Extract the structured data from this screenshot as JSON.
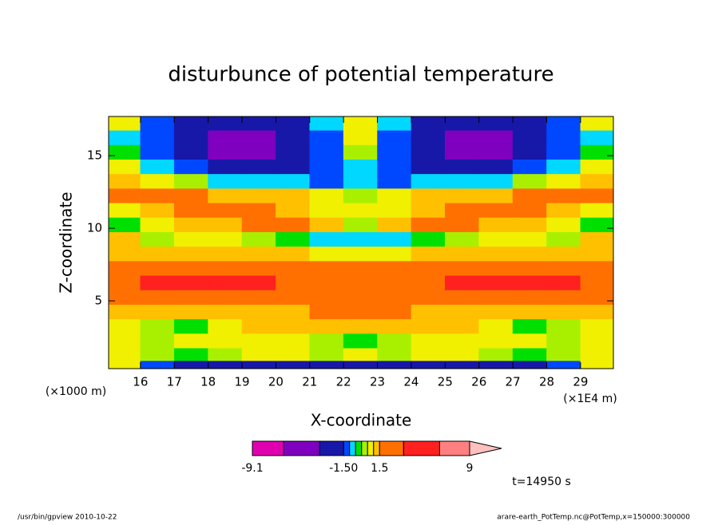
{
  "chart_data": {
    "type": "contour",
    "title": "disturbunce of potential temperature",
    "x_label": "X-coordinate",
    "y_label": "Z-coordinate",
    "y_unit": "(×1000 m)",
    "x_unit": "(×1E4 m)",
    "time_label": "t=14950 s",
    "footer_left": "/usr/bin/gpview  2010-10-22",
    "footer_right": "arare-earth_PotTemp.nc@PotTemp,x=150000:300000",
    "xlim": [
      15.06,
      29.97
    ],
    "ylim": [
      0.33,
      17.7
    ],
    "xticks": [
      16,
      17,
      18,
      19,
      20,
      21,
      22,
      23,
      24,
      25,
      26,
      27,
      28,
      29
    ],
    "yticks": [
      5,
      10,
      15
    ],
    "x": [
      15.5,
      16.5,
      17.5,
      18.5,
      19.5,
      20.5,
      21.5,
      22.5,
      23.5,
      24.5,
      25.5,
      26.5,
      27.5,
      28.5,
      29.5
    ],
    "y": [
      0.5,
      1.25,
      2.25,
      3.25,
      4.25,
      5.25,
      6.25,
      7.25,
      8.25,
      9.25,
      10.25,
      11.25,
      12.25,
      13.25,
      14.25,
      15.25,
      16.25,
      17.25
    ],
    "z": [
      [
        0.7,
        -1.2,
        -2.5,
        -2.5,
        -2.5,
        -2.5,
        -2.5,
        -2.5,
        -2.5,
        -2.5,
        -2.5,
        -2.5,
        -2.5,
        -1.2,
        0.7
      ],
      [
        0.7,
        0.3,
        -0.3,
        0.3,
        0.7,
        0.7,
        0.3,
        0.7,
        0.3,
        0.7,
        0.7,
        0.3,
        -0.3,
        0.3,
        0.7
      ],
      [
        0.7,
        0.3,
        0.7,
        0.7,
        0.7,
        0.7,
        0.3,
        -0.3,
        0.3,
        0.7,
        0.7,
        0.7,
        0.7,
        0.3,
        0.7
      ],
      [
        0.7,
        0.3,
        -0.3,
        0.7,
        1.2,
        1.2,
        1.2,
        1.2,
        1.2,
        1.2,
        1.2,
        0.7,
        -0.3,
        0.3,
        0.7
      ],
      [
        1.2,
        1.2,
        1.2,
        1.2,
        1.2,
        1.2,
        2,
        2,
        2,
        1.2,
        1.2,
        1.2,
        1.2,
        1.2,
        1.2
      ],
      [
        2,
        2,
        2,
        2,
        2,
        2,
        2,
        2,
        2,
        2,
        2,
        2,
        2,
        2,
        2
      ],
      [
        2,
        4,
        4,
        4,
        4,
        2,
        2,
        2,
        2,
        2,
        4,
        4,
        4,
        4,
        2
      ],
      [
        2,
        2,
        2,
        2,
        2,
        2,
        2,
        2,
        2,
        2,
        2,
        2,
        2,
        2,
        2
      ],
      [
        1.2,
        1.2,
        1.2,
        1.2,
        1.2,
        1.2,
        0.7,
        0.7,
        0.7,
        1.2,
        1.2,
        1.2,
        1.2,
        1.2,
        1.2
      ],
      [
        1.2,
        0.3,
        0.7,
        0.7,
        0.3,
        -0.3,
        -0.7,
        -0.7,
        -0.7,
        -0.3,
        0.3,
        0.7,
        0.7,
        0.3,
        1.2
      ],
      [
        -0.3,
        0.7,
        1.2,
        1.2,
        2,
        2,
        1.2,
        0.3,
        1.2,
        2,
        2,
        1.2,
        1.2,
        0.7,
        -0.3
      ],
      [
        0.7,
        1.2,
        2,
        2,
        2,
        1.2,
        0.7,
        0.7,
        0.7,
        1.2,
        2,
        2,
        2,
        1.2,
        0.7
      ],
      [
        2,
        2,
        2,
        1.2,
        1.2,
        1.2,
        0.7,
        0.3,
        0.7,
        1.2,
        1.2,
        1.2,
        2,
        2,
        2
      ],
      [
        1.2,
        0.7,
        0.3,
        -0.7,
        -0.7,
        -0.7,
        -1.2,
        -0.7,
        -1.2,
        -0.7,
        -0.7,
        -0.7,
        0.3,
        0.7,
        1.2
      ],
      [
        0.7,
        -0.7,
        -1.2,
        -2.5,
        -2.5,
        -2.5,
        -1.2,
        -0.7,
        -1.2,
        -2.5,
        -2.5,
        -2.5,
        -1.2,
        -0.7,
        0.7
      ],
      [
        -0.3,
        -1.2,
        -2.5,
        -4.5,
        -4.5,
        -2.5,
        -1.2,
        0.3,
        -1.2,
        -2.5,
        -4.5,
        -4.5,
        -2.5,
        -1.2,
        -0.3
      ],
      [
        -0.7,
        -1.2,
        -2.5,
        -4.5,
        -4.5,
        -2.5,
        -1.2,
        0.7,
        -1.2,
        -2.5,
        -4.5,
        -4.5,
        -2.5,
        -1.2,
        -0.7
      ],
      [
        0.7,
        -1.2,
        -2,
        -2,
        -2,
        -2,
        -0.8,
        0.7,
        -0.8,
        -2,
        -2,
        -2,
        -2,
        -1.2,
        0.7
      ]
    ],
    "levels": [
      -9.1,
      -6.5,
      -3.5,
      -1.5,
      -1.0,
      -0.5,
      0,
      0.5,
      1.0,
      1.5,
      3.5,
      6.5,
      9
    ],
    "colors": [
      "#e000b0",
      "#8000c0",
      "#1818a8",
      "#0048ff",
      "#00d8ff",
      "#00e000",
      "#a8f000",
      "#f0f000",
      "#ffc000",
      "#ff7000",
      "#ff2020",
      "#ff8080"
    ],
    "over_color": "#ffc0c0",
    "colorbar_ticks": [
      -9.1,
      {
        "value": -1.5,
        "label": "-1.50"
      },
      1.5,
      9
    ]
  }
}
